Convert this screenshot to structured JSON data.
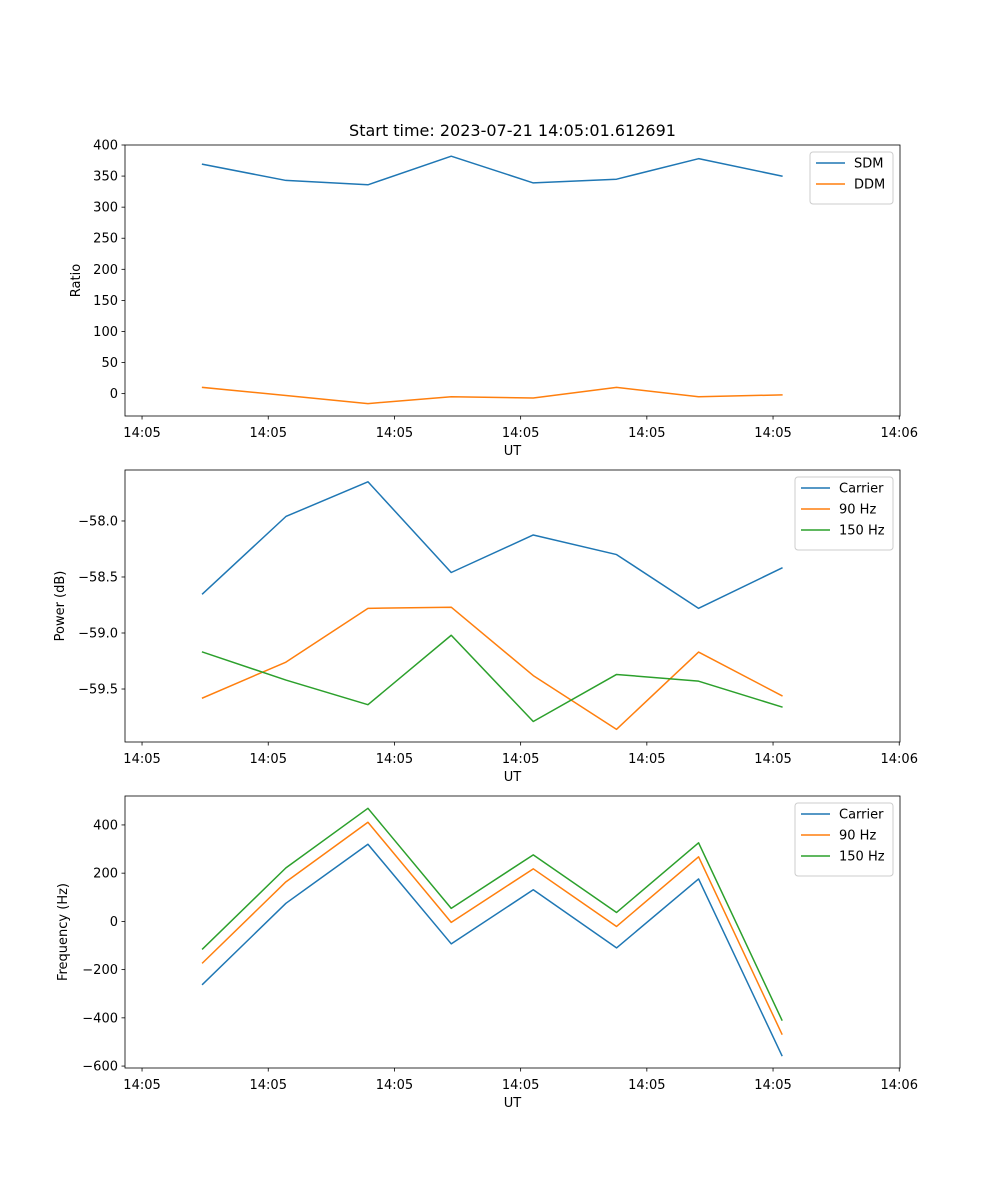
{
  "figure_title": "Start time: 2023-07-21 14:05:01.612691",
  "chart_data": [
    {
      "type": "line",
      "title": "Start time: 2023-07-21 14:05:01.612691",
      "xlabel": "UT",
      "ylabel": "Ratio",
      "x_unit": "seconds after 14:05:00",
      "x": [
        4.8,
        11.4,
        17.9,
        24.5,
        31.0,
        37.6,
        44.1,
        50.7
      ],
      "xlim": [
        -1.35,
        60.06
      ],
      "xticks": [
        0,
        10,
        20,
        30,
        40,
        50,
        60
      ],
      "xtick_labels": [
        "14:05",
        "14:05",
        "14:05",
        "14:05",
        "14:05",
        "14:05",
        "14:06"
      ],
      "ylim": [
        -36,
        400
      ],
      "yticks": [
        0,
        50,
        100,
        150,
        200,
        250,
        300,
        350,
        400
      ],
      "ytick_labels": [
        "0",
        "50",
        "100",
        "150",
        "200",
        "250",
        "300",
        "350",
        "400"
      ],
      "legend_position": "top-right",
      "grid": false,
      "series": [
        {
          "name": "SDM",
          "color": "#1f77b4",
          "values": [
            369,
            343,
            336,
            382,
            339,
            345,
            378,
            350
          ]
        },
        {
          "name": "DDM",
          "color": "#ff7f0e",
          "values": [
            10,
            -3,
            -16,
            -5,
            -7,
            10,
            -5,
            -2
          ]
        }
      ]
    },
    {
      "type": "line",
      "title": "",
      "xlabel": "UT",
      "ylabel": "Power (dB)",
      "x_unit": "seconds after 14:05:00",
      "x": [
        4.8,
        11.4,
        17.9,
        24.5,
        31.0,
        37.6,
        44.1,
        50.7
      ],
      "xlim": [
        -1.35,
        60.06
      ],
      "xticks": [
        0,
        10,
        20,
        30,
        40,
        50,
        60
      ],
      "xtick_labels": [
        "14:05",
        "14:05",
        "14:05",
        "14:05",
        "14:05",
        "14:05",
        "14:06"
      ],
      "ylim": [
        -59.973,
        -57.545
      ],
      "yticks": [
        -58.0,
        -58.5,
        -59.0,
        -59.5
      ],
      "ytick_labels": [
        "−58.0",
        "−58.5",
        "−59.0",
        "−59.5"
      ],
      "legend_position": "top-right",
      "grid": false,
      "series": [
        {
          "name": "Carrier",
          "color": "#1f77b4",
          "values": [
            -58.65,
            -57.96,
            -57.65,
            -58.46,
            -58.125,
            -58.3,
            -58.78,
            -58.42
          ]
        },
        {
          "name": "90 Hz",
          "color": "#ff7f0e",
          "values": [
            -59.58,
            -59.26,
            -58.78,
            -58.77,
            -59.38,
            -59.86,
            -59.17,
            -59.56
          ]
        },
        {
          "name": "150 Hz",
          "color": "#2ca02c",
          "values": [
            -59.17,
            -59.42,
            -59.64,
            -59.02,
            -59.79,
            -59.37,
            -59.43,
            -59.66
          ]
        }
      ]
    },
    {
      "type": "line",
      "title": "",
      "xlabel": "UT",
      "ylabel": "Frequency (Hz)",
      "x_unit": "seconds after 14:05:00",
      "x": [
        4.8,
        11.4,
        17.9,
        24.5,
        31.0,
        37.6,
        44.1,
        50.7
      ],
      "xlim": [
        -1.35,
        60.06
      ],
      "xticks": [
        0,
        10,
        20,
        30,
        40,
        50,
        60
      ],
      "xtick_labels": [
        "14:05",
        "14:05",
        "14:05",
        "14:05",
        "14:05",
        "14:05",
        "14:06"
      ],
      "ylim": [
        -608,
        520
      ],
      "yticks": [
        400,
        200,
        0,
        -200,
        -400,
        -600
      ],
      "ytick_labels": [
        "400",
        "200",
        "0",
        "−200",
        "−400",
        "−600"
      ],
      "legend_position": "top-right",
      "grid": false,
      "series": [
        {
          "name": "Carrier",
          "color": "#1f77b4",
          "values": [
            -261,
            75,
            320,
            -93,
            131,
            -110,
            176,
            -556
          ]
        },
        {
          "name": "90 Hz",
          "color": "#ff7f0e",
          "values": [
            -172,
            164,
            411,
            -4,
            218,
            -21,
            268,
            -467
          ]
        },
        {
          "name": "150 Hz",
          "color": "#2ca02c",
          "values": [
            -114,
            222,
            469,
            54,
            276,
            37,
            326,
            -409
          ]
        }
      ]
    }
  ]
}
